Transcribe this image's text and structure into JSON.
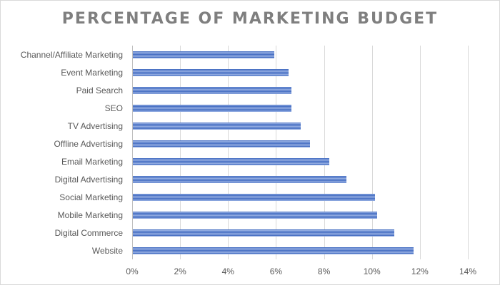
{
  "chart_data": {
    "type": "bar",
    "orientation": "horizontal",
    "title": "PERCENTAGE OF MARKETING BUDGET",
    "xlabel": "",
    "ylabel": "",
    "categories": [
      "Channel/Affiliate Marketing",
      "Event Marketing",
      "Paid Search",
      "SEO",
      "TV Advertising",
      "Offline Advertising",
      "Email Marketing",
      "Digital Advertising",
      "Social Marketing",
      "Mobile Marketing",
      "Digital Commerce",
      "Website"
    ],
    "values": [
      5.9,
      6.5,
      6.6,
      6.6,
      7.0,
      7.4,
      8.2,
      8.9,
      10.1,
      10.2,
      10.9,
      11.7
    ],
    "unit": "%",
    "xlim": [
      0,
      14
    ],
    "xticks": [
      "0%",
      "2%",
      "4%",
      "6%",
      "8%",
      "10%",
      "12%",
      "14%"
    ],
    "grid": true,
    "legend": null,
    "bar_color": "#4a72c4"
  }
}
